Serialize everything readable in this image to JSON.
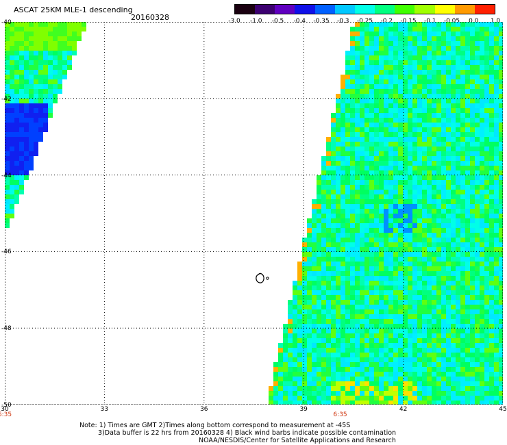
{
  "header": {
    "title": "ASCAT 25KM MLE-1 descending",
    "date": "20160328"
  },
  "colorbar": {
    "labels": [
      "-3.0",
      "-1.0",
      "-0.5",
      "-0.4",
      "-0.35",
      "-0.3",
      "-0.25",
      "-0.2",
      "-0.15",
      "-0.1",
      "-0.05",
      "0.0",
      "1.0"
    ],
    "colors": [
      "#1a0010",
      "#3c0070",
      "#6000c0",
      "#1010e8",
      "#0060ff",
      "#00c8ff",
      "#00ffe8",
      "#00ff80",
      "#40ff00",
      "#a0ff00",
      "#ffff00",
      "#ff9a00",
      "#ff2000"
    ]
  },
  "map": {
    "lon_ticks": [
      "30",
      "33",
      "36",
      "39",
      "42",
      "45"
    ],
    "lat_ticks": [
      "-40",
      "-42",
      "-44",
      "-46",
      "-48",
      "-50"
    ],
    "lon_range": [
      30,
      45
    ],
    "lat_range": [
      -50,
      -40
    ],
    "time_labels": [
      {
        "lon": 30,
        "text": "6:35"
      },
      {
        "lon": 40.1,
        "text": "6:35"
      }
    ],
    "land_feature": "Prince Edward Islands outline near 37.7E, -46.9S"
  },
  "notes": {
    "line1": "Note: 1) Times are GMT 2)Times along bottom correspond to measurement at -45S",
    "line2": "3)Data buffer is 22 hrs from 20160328 4) Black wind barbs indicate possible contamination",
    "line3": "NOAA/NESDIS/Center for Satellite Applications and Research"
  }
}
